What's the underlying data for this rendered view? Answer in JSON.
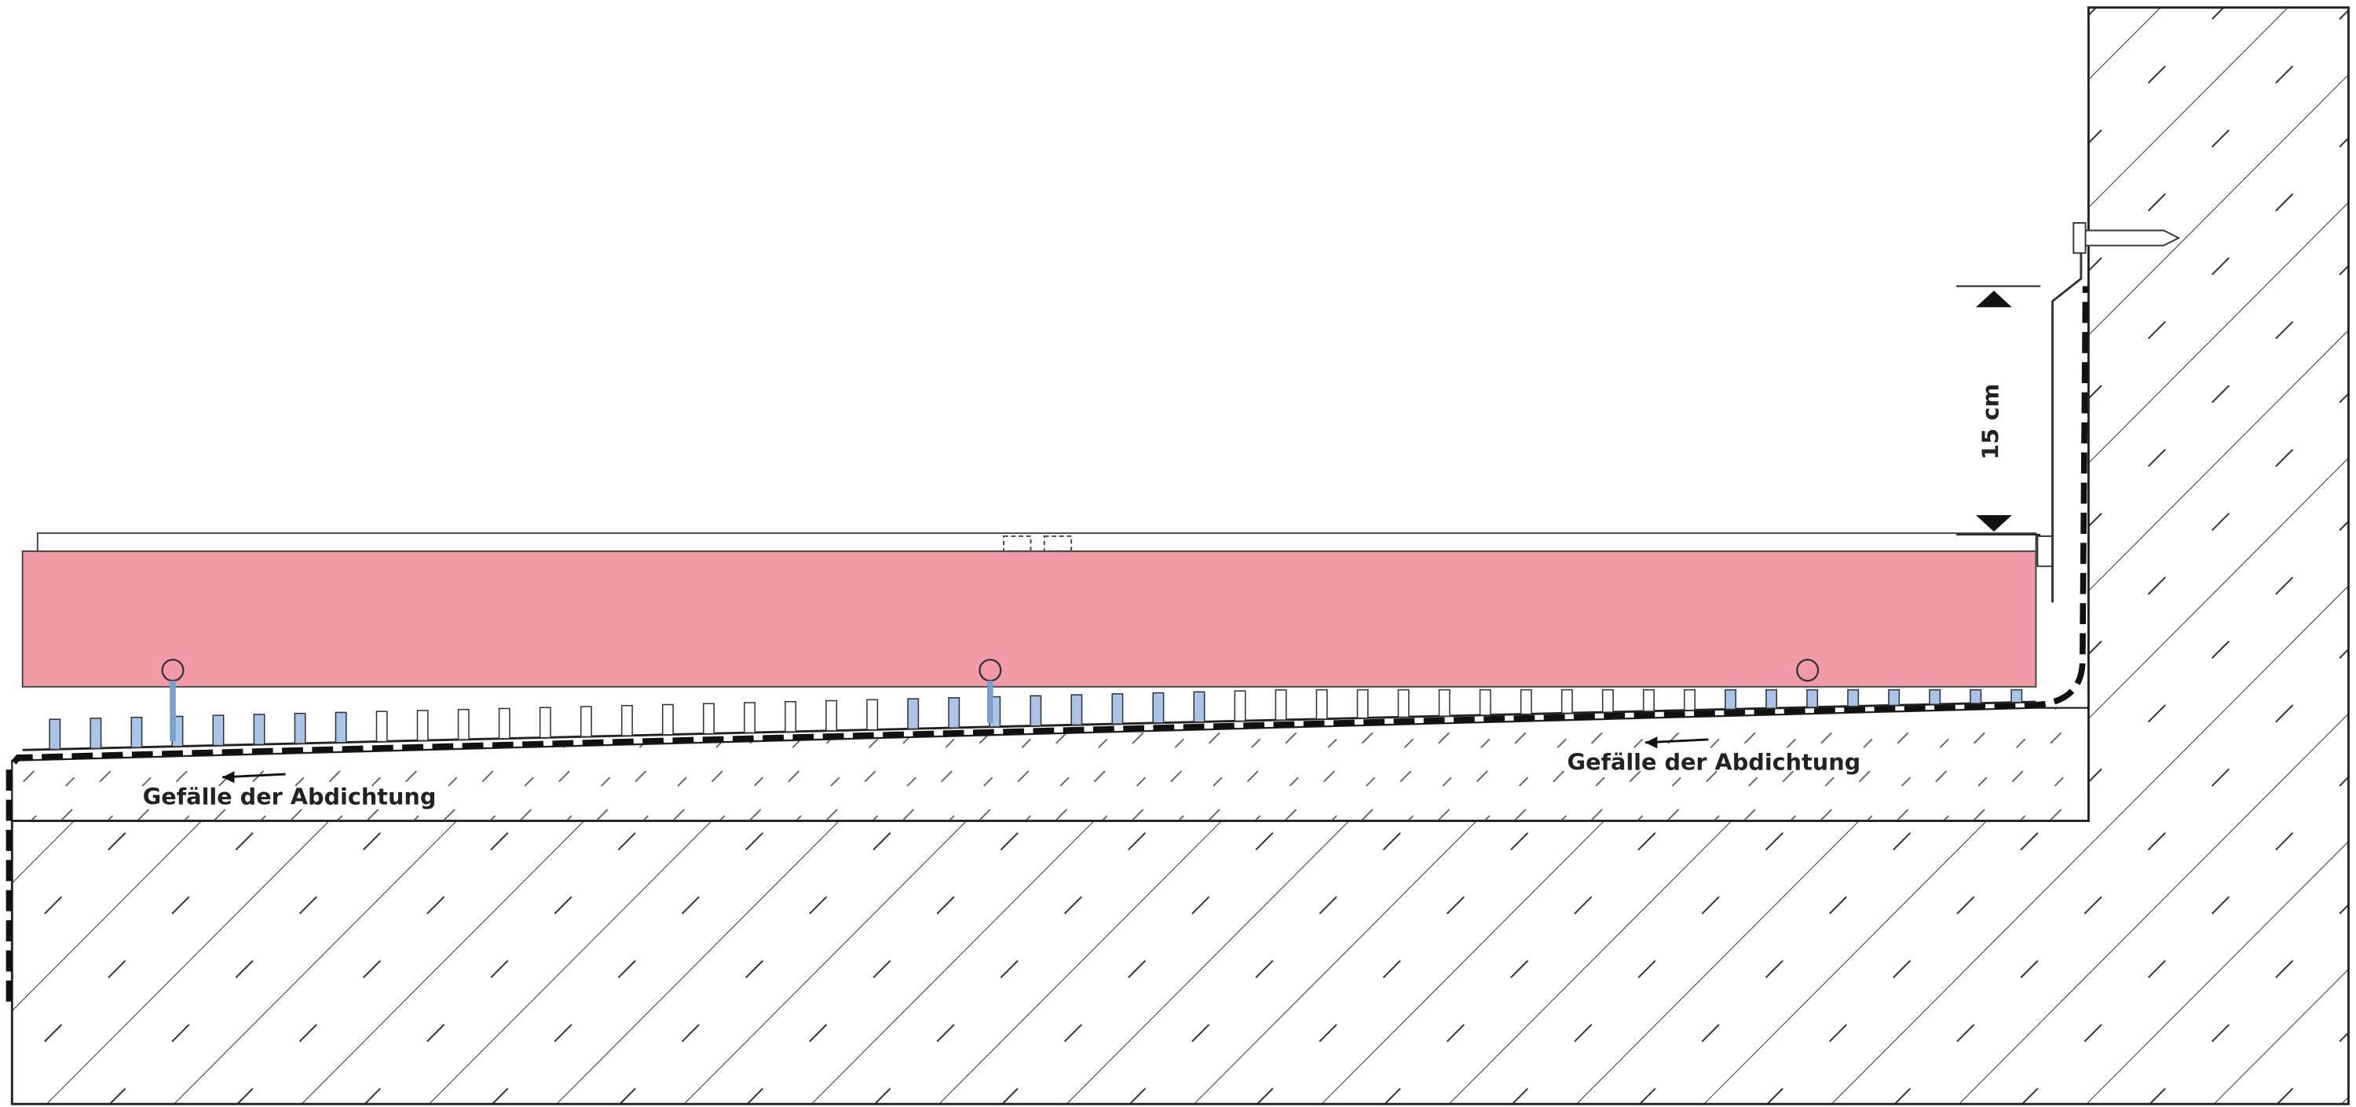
{
  "dimension": {
    "label": "15 cm"
  },
  "slope_labels": [
    "Gefälle der Abdichtung",
    "Gefälle der Abdichtung"
  ]
}
